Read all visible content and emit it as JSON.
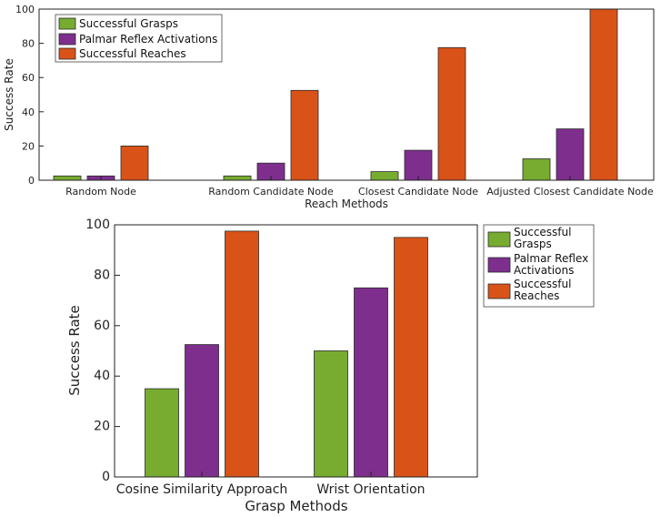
{
  "colors": {
    "grasps": "#77ac30",
    "palmar": "#7e2f8e",
    "reaches": "#d95319"
  },
  "chart_data": [
    {
      "type": "bar",
      "categories": [
        "Random Node",
        "Random Candidate Node",
        "Closest Candidate Node",
        "Adjusted Closest Candidate Node"
      ],
      "series": [
        {
          "name": "Successful Grasps",
          "values": [
            2.5,
            2.5,
            5,
            12.5
          ]
        },
        {
          "name": "Palmar Reflex Activations",
          "values": [
            2.5,
            10,
            17.5,
            30
          ]
        },
        {
          "name": "Successful Reaches",
          "values": [
            20,
            52.5,
            77.5,
            100
          ]
        }
      ],
      "title": "",
      "xlabel": "Reach Methods",
      "ylabel": "Success Rate",
      "ylim": [
        0,
        100
      ],
      "yticks": [
        0,
        20,
        40,
        60,
        80,
        100
      ],
      "legend_position": "top-left",
      "legend_labels": [
        "Successful Grasps",
        "Palmar Reflex Activations",
        "Successful Reaches"
      ]
    },
    {
      "type": "bar",
      "categories": [
        "Cosine Similarity Approach",
        "Wrist Orientation"
      ],
      "series": [
        {
          "name": "Successful Grasps",
          "values": [
            35,
            50
          ]
        },
        {
          "name": "Palmar Reflex Activations",
          "values": [
            52.5,
            75
          ]
        },
        {
          "name": "Successful Reaches",
          "values": [
            97.5,
            95
          ]
        }
      ],
      "title": "",
      "xlabel": "Grasp Methods",
      "ylabel": "Success Rate",
      "ylim": [
        0,
        100
      ],
      "yticks": [
        0,
        20,
        40,
        60,
        80,
        100
      ],
      "legend_position": "outside-right",
      "legend_labels": [
        [
          "Successful",
          "Grasps"
        ],
        [
          "Palmar Reflex",
          "Activations"
        ],
        [
          "Successful",
          "Reaches"
        ]
      ]
    }
  ]
}
